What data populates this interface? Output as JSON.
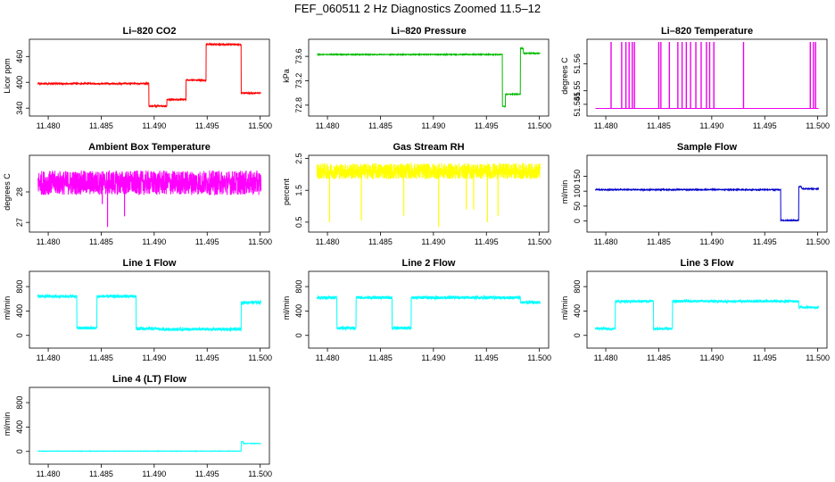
{
  "figure": {
    "title": "FEF_060511  2 Hz Diagnostics Zoomed 11.5–12"
  },
  "chart_data": [
    {
      "id": "co2",
      "type": "line",
      "title": "Li–820 CO2",
      "ylabel": "Licor ppm",
      "xlabel": "",
      "color": "#ff0000",
      "xlim": [
        11.4789,
        11.5002
      ],
      "ylim": [
        330,
        500
      ],
      "xticks": [
        "11.480",
        "11.485",
        "11.490",
        "11.495",
        "11.500"
      ],
      "yticks": [
        340,
        400,
        460
      ],
      "noise": 1.5,
      "segments": [
        [
          11.479,
          11.4895,
          397
        ],
        [
          11.4895,
          11.4912,
          345
        ],
        [
          11.4912,
          11.493,
          360
        ],
        [
          11.493,
          11.4949,
          405
        ],
        [
          11.4949,
          11.4982,
          488
        ],
        [
          11.4982,
          11.5,
          375
        ]
      ]
    },
    {
      "id": "pressure",
      "type": "line",
      "title": "Li–820 Pressure",
      "ylabel": "kPa",
      "xlabel": "",
      "color": "#00bb00",
      "xlim": [
        11.4789,
        11.5002
      ],
      "ylim": [
        72.68,
        73.88
      ],
      "xticks": [
        "11.480",
        "11.485",
        "11.490",
        "11.495",
        "11.500"
      ],
      "yticks": [
        72.8,
        73.2,
        73.6
      ],
      "noise": 0.006,
      "segments": [
        [
          11.479,
          11.4965,
          73.63
        ],
        [
          11.4965,
          11.4968,
          72.78
        ],
        [
          11.4968,
          11.4982,
          72.98
        ],
        [
          11.4982,
          11.4985,
          73.73
        ],
        [
          11.4985,
          11.5,
          73.65
        ]
      ]
    },
    {
      "id": "licor-temp",
      "type": "line",
      "title": "Li–820 Temperature",
      "ylabel": "degrees C",
      "xlabel": "",
      "color": "#ee00ee",
      "xlim": [
        11.4789,
        11.5002
      ],
      "ylim": [
        51.542,
        51.569
      ],
      "xticks": [
        "11.480",
        "11.485",
        "11.490",
        "11.495",
        "11.500"
      ],
      "yticks": [
        51.545,
        51.55,
        51.56
      ],
      "baseline": 51.5435,
      "spike_value": 51.568,
      "spikes": [
        11.4805,
        11.4815,
        11.4819,
        11.4822,
        11.4825,
        11.4827,
        11.485,
        11.4852,
        11.486,
        11.4868,
        11.4872,
        11.4876,
        11.488,
        11.4885,
        11.489,
        11.4895,
        11.4898,
        11.4902,
        11.493,
        11.4993,
        11.4996,
        11.4998
      ]
    },
    {
      "id": "box-temp",
      "type": "line",
      "title": "Ambient Box Temperature",
      "ylabel": "degrees C",
      "xlabel": "",
      "color": "#ff00ff",
      "xlim": [
        11.4789,
        11.5002
      ],
      "ylim": [
        26.8,
        29.2
      ],
      "xticks": [
        "11.480",
        "11.485",
        "11.490",
        "11.495",
        "11.500"
      ],
      "yticks": [
        27.0,
        28.0
      ],
      "noise": 0.4,
      "base": 28.3,
      "dips": [
        [
          11.4856,
          26.85
        ],
        [
          11.4872,
          27.2
        ],
        [
          11.4851,
          27.6
        ]
      ]
    },
    {
      "id": "rh",
      "type": "line",
      "title": "Gas Stream RH",
      "ylabel": "percent",
      "xlabel": "",
      "color": "#ffff00",
      "xlim": [
        11.4789,
        11.5002
      ],
      "ylim": [
        0.3,
        2.6
      ],
      "xticks": [
        "11.480",
        "11.485",
        "11.490",
        "11.495",
        "11.500"
      ],
      "yticks": [
        0.5,
        1.5,
        2.5
      ],
      "noise": 0.25,
      "base": 2.1,
      "dips": [
        [
          11.4802,
          0.5
        ],
        [
          11.4832,
          0.55
        ],
        [
          11.4872,
          0.7
        ],
        [
          11.4905,
          0.35
        ],
        [
          11.4931,
          0.9
        ],
        [
          11.4938,
          0.9
        ],
        [
          11.4951,
          0.5
        ],
        [
          11.4961,
          0.7
        ]
      ]
    },
    {
      "id": "sample-flow",
      "type": "line",
      "title": "Sample Flow",
      "ylabel": "ml/min",
      "xlabel": "",
      "color": "#0000cc",
      "xlim": [
        11.4789,
        11.5002
      ],
      "ylim": [
        -25,
        220
      ],
      "xticks": [
        "11.480",
        "11.485",
        "11.490",
        "11.495",
        "11.500"
      ],
      "yticks": [
        0,
        50,
        100,
        150
      ],
      "noise": 1.5,
      "segments": [
        [
          11.479,
          11.4965,
          105
        ],
        [
          11.4965,
          11.4982,
          2
        ],
        [
          11.4982,
          11.4985,
          115
        ],
        [
          11.4985,
          11.5,
          108
        ]
      ]
    },
    {
      "id": "line1",
      "type": "line",
      "title": "Line 1 Flow",
      "ylabel": "ml/min",
      "xlabel": "",
      "color": "#00ffff",
      "xlim": [
        11.4789,
        11.5002
      ],
      "ylim": [
        -150,
        1050
      ],
      "xticks": [
        "11.480",
        "11.485",
        "11.490",
        "11.495",
        "11.500"
      ],
      "yticks": [
        0,
        400,
        800
      ],
      "noise": 25,
      "segments": [
        [
          11.479,
          11.4827,
          640
        ],
        [
          11.4827,
          11.4846,
          120
        ],
        [
          11.4846,
          11.4883,
          640
        ],
        [
          11.4883,
          11.4905,
          110
        ],
        [
          11.4905,
          11.4982,
          100
        ],
        [
          11.4982,
          11.5,
          540
        ]
      ]
    },
    {
      "id": "line2",
      "type": "line",
      "title": "Line 2 Flow",
      "ylabel": "ml/min",
      "xlabel": "",
      "color": "#00ffff",
      "xlim": [
        11.4789,
        11.5002
      ],
      "ylim": [
        -150,
        1050
      ],
      "xticks": [
        "11.480",
        "11.485",
        "11.490",
        "11.495",
        "11.500"
      ],
      "yticks": [
        0,
        400,
        800
      ],
      "noise": 25,
      "segments": [
        [
          11.479,
          11.4809,
          620
        ],
        [
          11.4809,
          11.4827,
          120
        ],
        [
          11.4827,
          11.4861,
          620
        ],
        [
          11.4861,
          11.4879,
          120
        ],
        [
          11.4879,
          11.4982,
          620
        ],
        [
          11.4982,
          11.5,
          540
        ]
      ]
    },
    {
      "id": "line3",
      "type": "line",
      "title": "Line 3 Flow",
      "ylabel": "ml/min",
      "xlabel": "",
      "color": "#00ffff",
      "xlim": [
        11.4789,
        11.5002
      ],
      "ylim": [
        -150,
        1050
      ],
      "xticks": [
        "11.480",
        "11.485",
        "11.490",
        "11.495",
        "11.500"
      ],
      "yticks": [
        0,
        400,
        800
      ],
      "noise": 20,
      "segments": [
        [
          11.479,
          11.4809,
          110
        ],
        [
          11.4809,
          11.4845,
          560
        ],
        [
          11.4845,
          11.4863,
          110
        ],
        [
          11.4863,
          11.4982,
          560
        ],
        [
          11.4982,
          11.5,
          460
        ]
      ]
    },
    {
      "id": "line4",
      "type": "line",
      "title": "Line 4 (LT) Flow",
      "ylabel": "ml/min",
      "xlabel": "",
      "color": "#00ffff",
      "xlim": [
        11.4789,
        11.5002
      ],
      "ylim": [
        -150,
        1050
      ],
      "xticks": [
        "11.480",
        "11.485",
        "11.490",
        "11.495",
        "11.500"
      ],
      "yticks": [
        0,
        400,
        800
      ],
      "noise": 3,
      "segments": [
        [
          11.479,
          11.4982,
          5
        ],
        [
          11.4982,
          11.4984,
          160
        ],
        [
          11.4984,
          11.5,
          130
        ]
      ]
    }
  ]
}
